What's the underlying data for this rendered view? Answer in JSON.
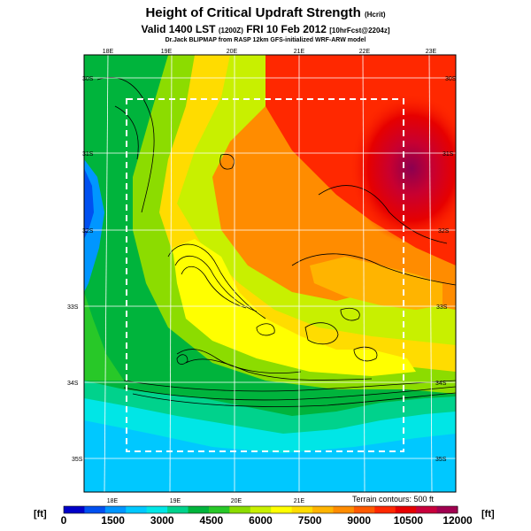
{
  "header": {
    "title": "Height of Critical Updraft Strength",
    "title_unit": "(Hcrit)",
    "valid_line": "Valid 1400 LST",
    "valid_code": "(1200Z)",
    "valid_date": "FRI 10 Feb 2012",
    "forecast_code": "[10hrFcst@2204z]",
    "credit": "Dr.Jack BLIPMAP from RASP 12km GFS-initialized WRF-ARW model"
  },
  "map": {
    "lon_labels_top": [
      "18E",
      "19E",
      "20E",
      "21E",
      "22E",
      "23E"
    ],
    "lon_labels_bottom": [
      "18E",
      "19E",
      "20E",
      "21E"
    ],
    "lat_labels_left": [
      "30S",
      "31S",
      "32S",
      "33S",
      "34S",
      "35S"
    ],
    "lat_labels_right": [
      "30S",
      "31S",
      "32S",
      "33S",
      "34S",
      "35S"
    ],
    "terrain_note": "Terrain contours: 500 ft"
  },
  "colorbar": {
    "unit_left": "[ft]",
    "unit_right": "[ft]",
    "tick_labels": [
      "0",
      "1500",
      "3000",
      "4500",
      "6000",
      "7500",
      "9000",
      "10500",
      "12000"
    ],
    "colors": [
      "#0000c8",
      "#0050f0",
      "#0096ff",
      "#00c8ff",
      "#00e6e6",
      "#00d28c",
      "#00b43c",
      "#28c828",
      "#8cdc00",
      "#c8f000",
      "#ffff00",
      "#ffdc00",
      "#ffb400",
      "#ff8c00",
      "#ff5a00",
      "#ff2800",
      "#e60000",
      "#c8003c",
      "#a00050"
    ]
  }
}
